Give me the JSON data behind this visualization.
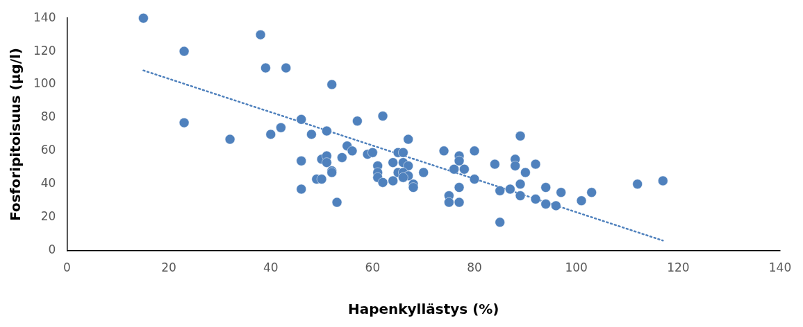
{
  "chart_data": {
    "type": "scatter",
    "xlabel": "Hapenkyllästys (%)",
    "ylabel": "Fosforipitoisuus (µg/l)",
    "xlim": [
      0,
      140
    ],
    "ylim": [
      0,
      140
    ],
    "xticks": [
      0,
      20,
      40,
      60,
      80,
      100,
      120,
      140
    ],
    "yticks": [
      0,
      20,
      40,
      60,
      80,
      100,
      120,
      140
    ],
    "grid": false,
    "legend": false,
    "marker": "circle",
    "series": [
      {
        "color": "#4f81bd",
        "x": [
          15,
          23,
          23,
          32,
          38,
          39,
          43,
          40,
          42,
          46,
          46,
          46,
          48,
          51,
          52,
          57,
          62,
          67,
          55,
          56,
          54,
          50,
          51,
          51,
          52,
          52,
          49,
          50,
          53,
          59,
          60,
          61,
          61,
          61,
          62,
          64,
          64,
          65,
          66,
          66,
          67,
          65,
          66,
          67,
          66,
          68,
          68,
          70,
          74,
          77,
          77,
          76,
          78,
          77,
          75,
          75,
          77,
          80,
          80,
          84,
          89,
          88,
          88,
          90,
          92,
          85,
          87,
          89,
          89,
          92,
          85,
          94,
          94,
          96,
          97,
          101,
          103,
          112,
          117
        ],
        "values": [
          140,
          120,
          77,
          67,
          130,
          110,
          110,
          70,
          74,
          79,
          54,
          37,
          70,
          72,
          100,
          78,
          81,
          67,
          63,
          60,
          56,
          55,
          57,
          53,
          48,
          47,
          43,
          43,
          29,
          58,
          59,
          51,
          47,
          44,
          41,
          53,
          42,
          59,
          59,
          53,
          51,
          47,
          47,
          45,
          44,
          40,
          38,
          47,
          60,
          57,
          54,
          49,
          49,
          38,
          33,
          29,
          29,
          60,
          43,
          52,
          69,
          55,
          51,
          47,
          52,
          36,
          37,
          40,
          33,
          31,
          17,
          38,
          28,
          27,
          35,
          30,
          35,
          40,
          42
        ]
      },
      {
        "type": "line",
        "color": "#4f81bd",
        "line_style": "dotted",
        "marker": "none",
        "x": [
          15,
          117
        ],
        "values": [
          108.5,
          6
        ]
      }
    ]
  }
}
